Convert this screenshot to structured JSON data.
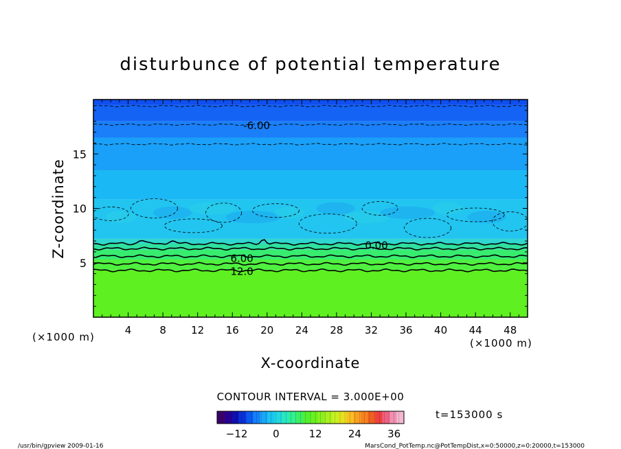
{
  "chart_data": {
    "type": "heatmap",
    "title": "disturbunce of potential temperature",
    "xlabel": "X-coordinate",
    "ylabel": "Z-coordinate",
    "x_unit_left": "(×1000 m)",
    "x_unit_right": "(×1000 m)",
    "xlim": [
      0,
      50
    ],
    "ylim": [
      0,
      20
    ],
    "x_ticks": [
      4,
      8,
      12,
      16,
      20,
      24,
      28,
      32,
      36,
      40,
      44,
      48
    ],
    "y_ticks": [
      5,
      10,
      15
    ],
    "contour_interval_text": "CONTOUR INTERVAL = 3.000E+00",
    "time_text": "t=153000 s",
    "contour_labels": [
      {
        "text": "-6.00",
        "x": 18.8,
        "z": 17.6
      },
      {
        "text": "0.00",
        "x": 32.6,
        "z": 6.6
      },
      {
        "text": "6.00",
        "x": 17.1,
        "z": 5.4
      },
      {
        "text": "12.0",
        "x": 17.1,
        "z": 4.2
      }
    ],
    "contour_levels": [
      {
        "value": -9,
        "z": 19.4,
        "style": "dashed"
      },
      {
        "value": -6,
        "z": 17.7,
        "style": "dashed"
      },
      {
        "value": -3,
        "z": 15.9,
        "style": "dashed"
      },
      {
        "value": 0,
        "z": 6.75,
        "style": "solid"
      },
      {
        "value": 3,
        "z": 6.3,
        "style": "solid"
      },
      {
        "value": 6,
        "z": 5.6,
        "style": "solid"
      },
      {
        "value": 9,
        "z": 4.9,
        "style": "solid"
      },
      {
        "value": 12,
        "z": 4.3,
        "style": "solid"
      }
    ],
    "field_layers": [
      {
        "z_from": 19.5,
        "z_to": 20,
        "color": "#0f4ff0"
      },
      {
        "z_from": 18.0,
        "z_to": 19.5,
        "color": "#1463f5"
      },
      {
        "z_from": 16.5,
        "z_to": 18.0,
        "color": "#1a7ff8"
      },
      {
        "z_from": 13.5,
        "z_to": 16.5,
        "color": "#1aa0f8"
      },
      {
        "z_from": 10.8,
        "z_to": 13.5,
        "color": "#1ab8f4"
      },
      {
        "z_from": 7.2,
        "z_to": 10.8,
        "color": "#22c4f0"
      },
      {
        "z_from": 6.75,
        "z_to": 7.2,
        "color": "#30d6d0"
      },
      {
        "z_from": 6.2,
        "z_to": 6.75,
        "color": "#30e0a0"
      },
      {
        "z_from": 5.3,
        "z_to": 6.2,
        "color": "#38ec70"
      },
      {
        "z_from": 4.3,
        "z_to": 5.3,
        "color": "#50f040"
      },
      {
        "z_from": 0,
        "z_to": 4.3,
        "color": "#5ef020"
      }
    ],
    "colorbar": {
      "min": -18,
      "max": 39,
      "ticks": [
        -12,
        0,
        12,
        24,
        36
      ],
      "colors": [
        "#3a006a",
        "#2a0090",
        "#1010b0",
        "#0a30d8",
        "#0a5af0",
        "#1480f8",
        "#1aa6f8",
        "#1ac4f0",
        "#22d8e0",
        "#28e8c0",
        "#30f090",
        "#3cf060",
        "#52f030",
        "#6af020",
        "#8af020",
        "#aaf020",
        "#c8f020",
        "#e8e020",
        "#f8c020",
        "#f8a020",
        "#f88020",
        "#f06020",
        "#f04040",
        "#f06080",
        "#f090b0",
        "#f4b8d0"
      ]
    },
    "grid": false,
    "legend": "bottom-center"
  },
  "footer": {
    "left": "/usr/bin/gpview   2009-01-16",
    "right": "MarsCond_PotTemp.nc@PotTempDist,x=0:50000,z=0:20000,t=153000"
  }
}
